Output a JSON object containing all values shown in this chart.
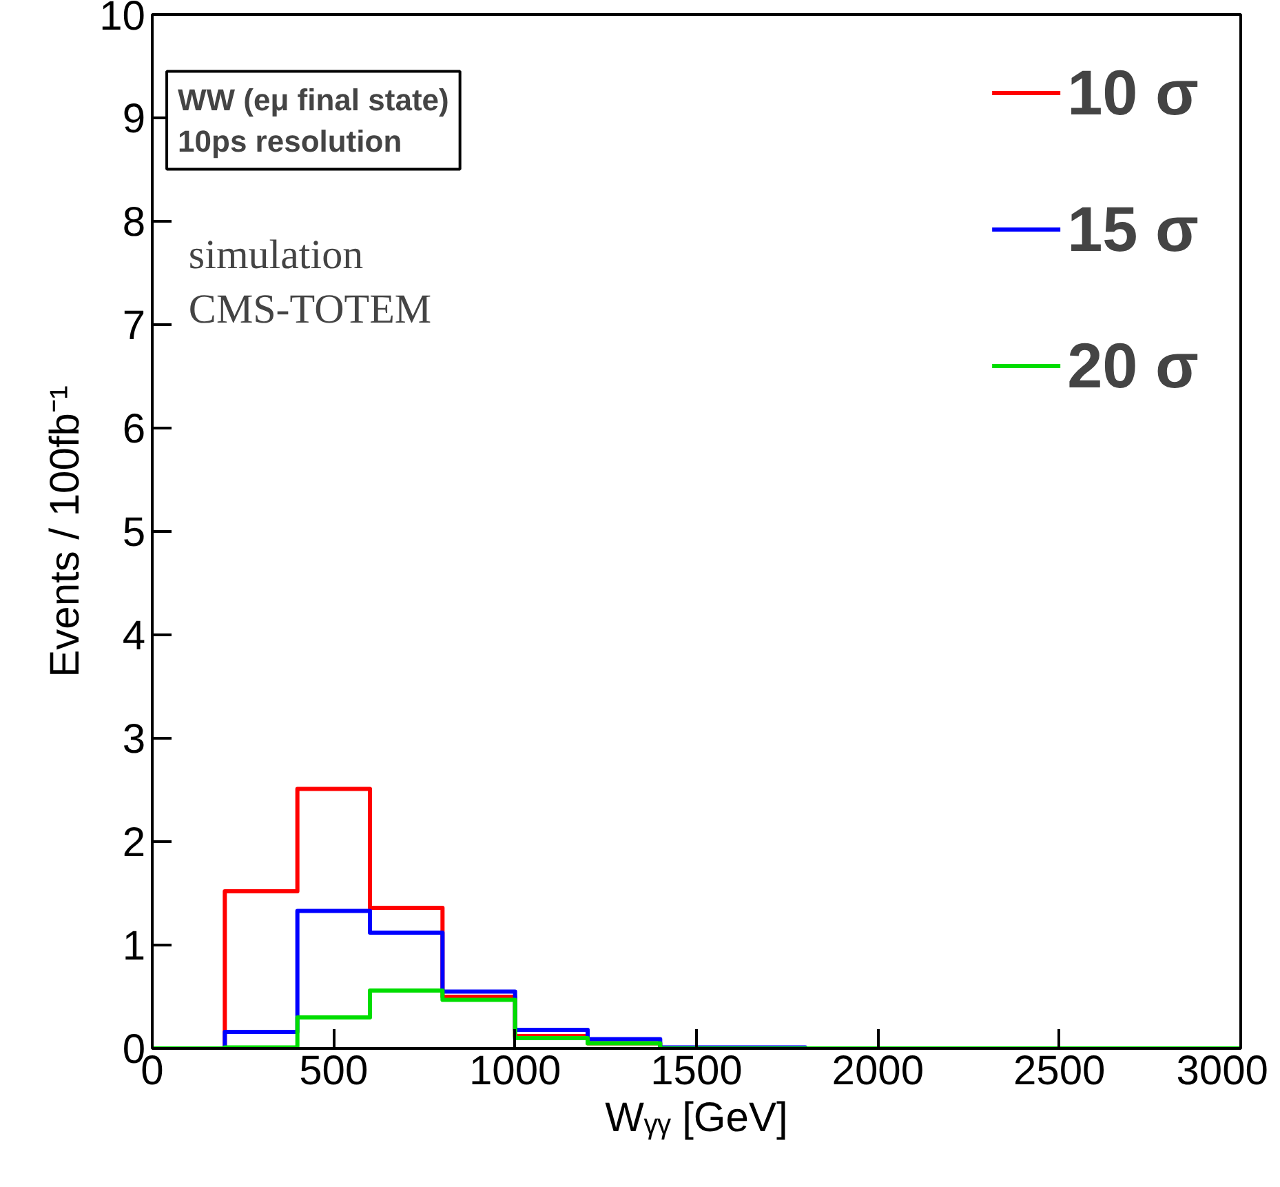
{
  "chart_data": {
    "type": "histogram",
    "xlabel": "Wᵧᵧ [GeV]",
    "ylabel": "Events / 100fb⁻¹",
    "bins": [
      0,
      200,
      400,
      600,
      800,
      1000,
      1200,
      1400,
      1600,
      1800,
      2000,
      2200,
      2400,
      2600,
      2800,
      3000
    ],
    "series": [
      {
        "name": "10 σ",
        "color": "#ff0000",
        "values": [
          0,
          1.52,
          2.51,
          1.36,
          0.5,
          0.12,
          0.05,
          0,
          0,
          0,
          0,
          0,
          0,
          0,
          0
        ]
      },
      {
        "name": "15 σ",
        "color": "#0000ff",
        "values": [
          0,
          0.16,
          1.33,
          1.12,
          0.55,
          0.18,
          0.09,
          0.01,
          0.01,
          0,
          0,
          0,
          0,
          0,
          0
        ]
      },
      {
        "name": "20 σ",
        "color": "#00dd00",
        "values": [
          0,
          0.01,
          0.3,
          0.56,
          0.47,
          0.1,
          0.05,
          0,
          0,
          0,
          0,
          0,
          0,
          0,
          0
        ]
      }
    ],
    "xlim": [
      0,
      3000
    ],
    "ylim": [
      0,
      10
    ],
    "xticks": [
      0,
      500,
      1000,
      1500,
      2000,
      2500,
      3000
    ],
    "yticks": [
      0,
      1,
      2,
      3,
      4,
      5,
      6,
      7,
      8,
      9,
      10
    ],
    "annotations": [
      "WW (eμ final state)\n10ps resolution",
      "simulation\nCMS-TOTEM"
    ],
    "legend": "top right",
    "grid": false
  }
}
